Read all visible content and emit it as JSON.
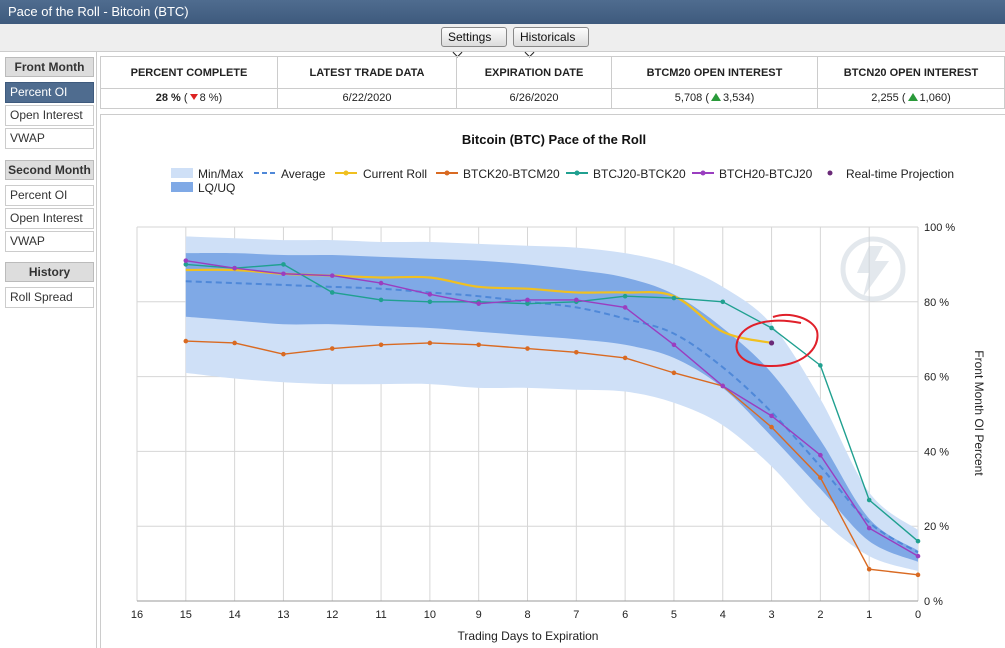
{
  "window": {
    "title": "Pace of the Roll - Bitcoin (BTC)"
  },
  "toolbar": {
    "settings_label": "Settings",
    "historicals_label": "Historicals"
  },
  "sidebar": {
    "front_month": {
      "heading": "Front Month",
      "items": [
        "Percent OI",
        "Open Interest",
        "VWAP"
      ]
    },
    "second_month": {
      "heading": "Second Month",
      "items": [
        "Percent OI",
        "Open Interest",
        "VWAP"
      ]
    },
    "history": {
      "heading": "History",
      "items": [
        "Roll Spread"
      ]
    }
  },
  "stats": {
    "percent_complete": {
      "label": "PERCENT COMPLETE",
      "value": "28 %",
      "change": "8 %",
      "change_dir": "down"
    },
    "latest_trade": {
      "label": "LATEST TRADE DATA",
      "value": "6/22/2020"
    },
    "expiration": {
      "label": "EXPIRATION DATE",
      "value": "6/26/2020"
    },
    "btcm20_oi": {
      "label": "BTCM20 OPEN INTEREST",
      "value": "5,708",
      "change": "3,534",
      "change_dir": "up"
    },
    "btcn20_oi": {
      "label": "BTCN20 OPEN INTEREST",
      "value": "2,255",
      "change": "1,060",
      "change_dir": "up"
    }
  },
  "colors": {
    "minmax": "#cfe0f7",
    "lquq": "#7fa9e6",
    "average": "#4f88d8",
    "current": "#f0c020",
    "btck_btcm": "#d96a22",
    "btcj_btck": "#20a090",
    "btch_btcj": "#9a3ec0",
    "projection": "#6a2a78",
    "annotation": "#e0202a"
  },
  "chart_data": {
    "type": "line",
    "title": "Bitcoin (BTC) Pace of the Roll",
    "xlabel": "Trading Days to Expiration",
    "ylabel": "Front Month OI Percent",
    "xlim": [
      16,
      0
    ],
    "ylim": [
      0,
      100
    ],
    "x_ticks": [
      "16",
      "15",
      "14",
      "13",
      "12",
      "11",
      "10",
      "9",
      "8",
      "7",
      "6",
      "5",
      "4",
      "3",
      "2",
      "1",
      "0"
    ],
    "y_ticks": [
      "0 %",
      "20 %",
      "40 %",
      "60 %",
      "80 %",
      "100 %"
    ],
    "grid": true,
    "legend_position": "top",
    "legend": [
      "Min/Max",
      "LQ/UQ",
      "Average",
      "Current Roll",
      "BTCK20-BTCM20",
      "BTCJ20-BTCK20",
      "BTCH20-BTCJ20",
      "Real-time Projection"
    ],
    "x": [
      15,
      14,
      13,
      12,
      11,
      10,
      9,
      8,
      7,
      6,
      5,
      4,
      3,
      2,
      1,
      0
    ],
    "bands": {
      "minmax": {
        "lower": [
          61,
          59.5,
          58.5,
          58,
          58,
          58,
          57,
          57,
          56.5,
          56,
          53,
          47,
          36,
          22,
          12,
          8
        ],
        "upper": [
          97.5,
          97,
          96.5,
          96.5,
          96,
          96,
          95.5,
          95,
          94.5,
          93,
          90,
          84,
          74,
          54,
          29,
          19
        ]
      },
      "lquq": {
        "lower": [
          76,
          75,
          74,
          74,
          73.5,
          73,
          72,
          71,
          70,
          68.5,
          65,
          57,
          44,
          30,
          16,
          10.5
        ],
        "upper": [
          93,
          93,
          92.5,
          92.5,
          92,
          91.5,
          91,
          90,
          88.5,
          86.5,
          82,
          73,
          61,
          43,
          22,
          13.5
        ]
      }
    },
    "series": [
      {
        "name": "Average",
        "values": [
          85.5,
          85,
          84.5,
          84,
          83.5,
          82.5,
          81.5,
          80,
          78.5,
          75.5,
          71.5,
          62.5,
          50.5,
          36,
          21,
          13
        ]
      },
      {
        "name": "Current Roll",
        "values": [
          88.5,
          88.5,
          87.5,
          87,
          86.5,
          86.5,
          84,
          83.5,
          82.5,
          82.5,
          81.5,
          72,
          69,
          null,
          null,
          null
        ]
      },
      {
        "name": "BTCK20-BTCM20",
        "values": [
          69.5,
          69,
          66,
          67.5,
          68.5,
          69,
          68.5,
          67.5,
          66.5,
          65,
          61,
          57.5,
          46.5,
          33,
          8.5,
          7
        ]
      },
      {
        "name": "BTCJ20-BTCK20",
        "values": [
          90,
          89,
          90,
          82.5,
          80.5,
          80,
          80,
          79.5,
          80,
          81.5,
          81,
          80,
          73,
          63,
          27,
          16
        ]
      },
      {
        "name": "BTCH20-BTCJ20",
        "values": [
          91,
          89,
          87.5,
          87,
          85,
          82,
          79.5,
          80.5,
          80.5,
          78.5,
          68.5,
          57.5,
          49.5,
          39,
          19.5,
          12
        ]
      }
    ],
    "projection": {
      "name": "Real-time Projection",
      "x": 3,
      "y": 69
    }
  }
}
